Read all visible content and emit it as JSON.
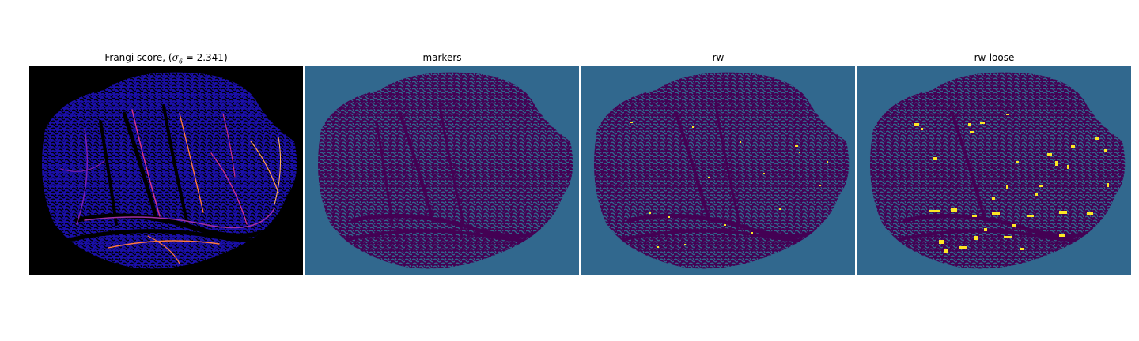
{
  "panels": [
    {
      "id": "frangi",
      "title": "Frangi score, (σ₆ = 2.341)",
      "title_prefix": "Frangi score, ",
      "title_sigma": "σ",
      "title_sub": "6",
      "title_value": " = 2.341",
      "background": "#000000",
      "foreground": "#1a0fa8",
      "highlight": "#ff7a3d",
      "highlight2": "#d4338b"
    },
    {
      "id": "markers",
      "title": "markers",
      "background": "#31688e",
      "foreground": "#440154"
    },
    {
      "id": "rw",
      "title": "rw",
      "background": "#31688e",
      "foreground": "#440154",
      "highlight": "#fde725"
    },
    {
      "id": "rw-loose",
      "title": "rw-loose",
      "background": "#31688e",
      "foreground": "#440154",
      "highlight": "#fde725"
    }
  ]
}
